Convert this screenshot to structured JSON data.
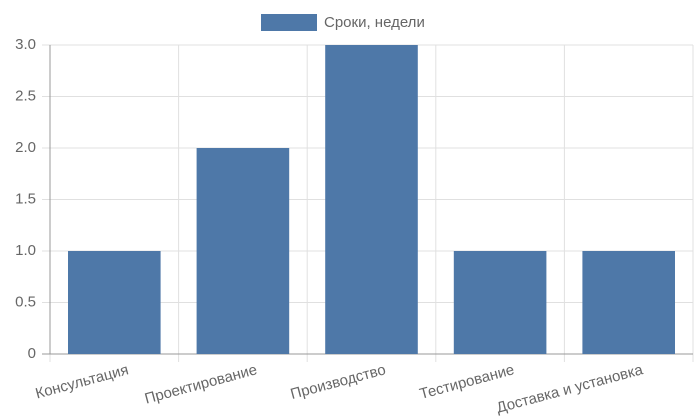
{
  "chart_data": {
    "type": "bar",
    "legend": "Сроки, недели",
    "categories": [
      "Консультация",
      "Проектирование",
      "Производство",
      "Тестирование",
      "Доставка и установка"
    ],
    "values": [
      1,
      2,
      3,
      1,
      1
    ],
    "color": "#4e78a8",
    "ylim": [
      0,
      3
    ],
    "yticks": [
      0,
      0.5,
      {
        "value": 1,
        "label": "1.0"
      },
      1.5,
      {
        "value": 2,
        "label": "2.0"
      },
      2.5,
      {
        "value": 3,
        "label": "3.0"
      }
    ],
    "grid": true
  }
}
